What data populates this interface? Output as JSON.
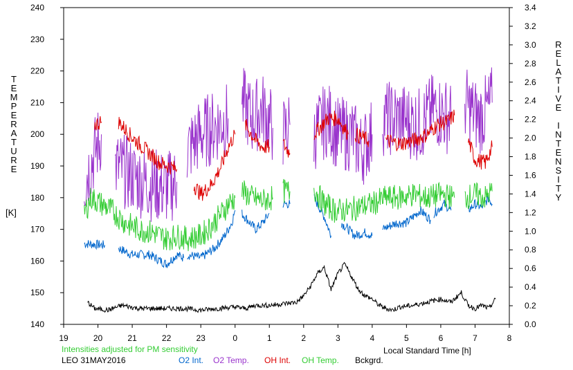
{
  "chart_data": {
    "type": "line",
    "ylabel_left": "TEMPERATURE",
    "ylabel_left_unit": "[K]",
    "ylabel_right": "RELATIVE INTENSITY",
    "xlabel": "Local Standard Time [h]",
    "note": "Intensities adjusted for PM sensitivity",
    "station_date": "LEO 31MAY2016",
    "xlim": [
      19,
      32
    ],
    "ylim_left": [
      140,
      240
    ],
    "ylim_right": [
      0,
      3.4
    ],
    "x_tick_labels": [
      "19",
      "20",
      "21",
      "22",
      "23",
      "0",
      "1",
      "2",
      "3",
      "4",
      "5",
      "6",
      "7",
      "8"
    ],
    "y_left_tick_labels": [
      "140",
      "150",
      "160",
      "170",
      "180",
      "190",
      "200",
      "210",
      "220",
      "230",
      "240"
    ],
    "y_right_tick_labels": [
      "0.0",
      "0.2",
      "0.4",
      "0.6",
      "0.8",
      "1.0",
      "1.2",
      "1.4",
      "1.6",
      "1.8",
      "2.0",
      "2.2",
      "2.4",
      "2.6",
      "2.8",
      "3.0",
      "3.2",
      "3.4"
    ],
    "series": [
      {
        "name": "O2 Int.",
        "color": "#0066cc",
        "axis": "left",
        "segments": [
          [
            [
              19.6,
              165.5
            ],
            [
              20.2,
              165
            ]
          ],
          [
            [
              20.6,
              164
            ],
            [
              21.0,
              162
            ],
            [
              21.5,
              162
            ],
            [
              22.0,
              159
            ],
            [
              22.3,
              162
            ],
            [
              22.5,
              161
            ]
          ],
          [
            [
              22.6,
              162
            ],
            [
              23.0,
              161
            ],
            [
              23.4,
              164
            ],
            [
              23.7,
              168
            ],
            [
              23.9,
              172
            ],
            [
              24.0,
              176
            ]
          ],
          [
            [
              24.2,
              175
            ],
            [
              24.6,
              170
            ],
            [
              24.8,
              172
            ],
            [
              25.0,
              175
            ]
          ],
          [
            [
              25.4,
              178
            ],
            [
              25.6,
              178
            ]
          ],
          [
            [
              26.3,
              180
            ],
            [
              26.6,
              174
            ],
            [
              26.8,
              168
            ]
          ],
          [
            [
              27.1,
              172
            ],
            [
              27.5,
              168
            ],
            [
              27.8,
              169
            ],
            [
              28.0,
              168
            ]
          ],
          [
            [
              28.3,
              170
            ],
            [
              28.7,
              172
            ],
            [
              29.0,
              172
            ],
            [
              29.4,
              176
            ],
            [
              29.7,
              173
            ]
          ],
          [
            [
              29.8,
              175
            ],
            [
              30.1,
              178
            ],
            [
              30.3,
              176
            ]
          ],
          [
            [
              30.8,
              176
            ],
            [
              31.0,
              178
            ],
            [
              31.2,
              177
            ],
            [
              31.4,
              180
            ],
            [
              31.5,
              178
            ]
          ]
        ]
      },
      {
        "name": "O2 Temp.",
        "color": "#9933cc",
        "axis": "left",
        "segments": [
          [
            [
              19.6,
              185
            ],
            [
              20.1,
              200
            ]
          ],
          [
            [
              20.5,
              190
            ],
            [
              21.3,
              185
            ],
            [
              22.0,
              183
            ],
            [
              22.3,
              185
            ]
          ],
          [
            [
              22.6,
              195
            ],
            [
              23.0,
              200
            ],
            [
              23.5,
              203
            ],
            [
              23.8,
              205
            ]
          ],
          [
            [
              24.2,
              210
            ],
            [
              24.5,
              205
            ],
            [
              24.8,
              208
            ],
            [
              25.1,
              202
            ]
          ],
          [
            [
              25.4,
              200
            ],
            [
              25.6,
              203
            ]
          ],
          [
            [
              26.3,
              200
            ],
            [
              26.7,
              205
            ],
            [
              27.0,
              200
            ],
            [
              27.4,
              200
            ],
            [
              27.7,
              195
            ],
            [
              28.0,
              200
            ]
          ],
          [
            [
              28.3,
              205
            ],
            [
              28.8,
              205
            ],
            [
              29.4,
              203
            ],
            [
              29.8,
              208
            ],
            [
              30.3,
              205
            ]
          ],
          [
            [
              30.7,
              210
            ],
            [
              31.1,
              205
            ],
            [
              31.4,
              208
            ],
            [
              31.5,
              210
            ]
          ]
        ]
      },
      {
        "name": "OH Int.",
        "color": "#dd0000",
        "axis": "left",
        "segments": [
          [
            [
              19.9,
              203
            ],
            [
              20.1,
              204
            ]
          ],
          [
            [
              20.6,
              204
            ],
            [
              21.0,
              199
            ],
            [
              21.4,
              195
            ],
            [
              21.8,
              191
            ],
            [
              22.3,
              189
            ]
          ],
          [
            [
              22.8,
              184
            ],
            [
              23.0,
              181
            ],
            [
              23.3,
              184
            ],
            [
              23.6,
              190
            ],
            [
              23.8,
              196
            ],
            [
              24.0,
              200
            ]
          ],
          [
            [
              24.3,
              203
            ],
            [
              24.6,
              198
            ],
            [
              24.8,
              196
            ],
            [
              25.0,
              196
            ]
          ],
          [
            [
              25.4,
              197
            ],
            [
              25.6,
              194
            ]
          ],
          [
            [
              26.3,
              200
            ],
            [
              26.7,
              205
            ],
            [
              27.0,
              205
            ],
            [
              27.3,
              200
            ]
          ],
          [
            [
              27.5,
              200
            ],
            [
              27.9,
              198
            ]
          ],
          [
            [
              28.4,
              198
            ],
            [
              28.8,
              197
            ],
            [
              29.2,
              198
            ],
            [
              29.6,
              200
            ],
            [
              29.9,
              203
            ],
            [
              30.2,
              204
            ],
            [
              30.4,
              206
            ]
          ],
          [
            [
              30.8,
              198
            ],
            [
              31.0,
              192
            ],
            [
              31.3,
              191
            ],
            [
              31.5,
              196
            ]
          ]
        ]
      },
      {
        "name": "OH Temp.",
        "color": "#33cc33",
        "axis": "left",
        "segments": [
          [
            [
              19.6,
              175
            ],
            [
              19.8,
              180
            ],
            [
              20.1,
              178
            ],
            [
              20.4,
              176
            ],
            [
              20.8,
              172
            ],
            [
              21.2,
              170
            ],
            [
              21.6,
              169
            ],
            [
              22.0,
              167
            ],
            [
              22.3,
              168
            ],
            [
              22.6,
              167
            ],
            [
              23.0,
              168
            ],
            [
              23.3,
              171
            ],
            [
              23.6,
              175
            ],
            [
              23.8,
              178
            ],
            [
              24.0,
              180
            ]
          ],
          [
            [
              24.2,
              182
            ],
            [
              24.5,
              180
            ],
            [
              24.8,
              179
            ],
            [
              25.1,
              180
            ]
          ],
          [
            [
              25.4,
              182
            ],
            [
              25.6,
              182
            ]
          ],
          [
            [
              26.3,
              183
            ],
            [
              26.6,
              178
            ],
            [
              26.9,
              176
            ],
            [
              27.3,
              176
            ],
            [
              27.6,
              177
            ],
            [
              28.0,
              178
            ],
            [
              28.4,
              180
            ],
            [
              28.8,
              180
            ],
            [
              29.2,
              181
            ],
            [
              29.6,
              180
            ],
            [
              30.0,
              181
            ],
            [
              30.4,
              180
            ]
          ],
          [
            [
              30.7,
              180
            ],
            [
              31.0,
              181
            ],
            [
              31.3,
              180
            ],
            [
              31.5,
              182
            ]
          ]
        ]
      },
      {
        "name": "Bckgrd.",
        "color": "#000000",
        "axis": "left",
        "segments": [
          [
            [
              19.7,
              147
            ],
            [
              19.9,
              145
            ],
            [
              20.3,
              144.5
            ],
            [
              20.7,
              146
            ],
            [
              21.2,
              145
            ],
            [
              21.6,
              145
            ],
            [
              22.0,
              145
            ],
            [
              22.5,
              145
            ],
            [
              23.0,
              144.5
            ],
            [
              23.5,
              145
            ],
            [
              24.0,
              145.5
            ],
            [
              24.3,
              145
            ],
            [
              24.6,
              146
            ],
            [
              25.0,
              146
            ],
            [
              25.4,
              146.5
            ],
            [
              25.8,
              147
            ],
            [
              26.0,
              149
            ],
            [
              26.2,
              152
            ],
            [
              26.4,
              156
            ],
            [
              26.6,
              158
            ],
            [
              26.8,
              151
            ],
            [
              27.0,
              156
            ],
            [
              27.2,
              159
            ],
            [
              27.4,
              155
            ],
            [
              27.6,
              151
            ],
            [
              27.8,
              149
            ],
            [
              28.0,
              148
            ],
            [
              28.2,
              146
            ],
            [
              28.4,
              145
            ],
            [
              28.6,
              144.5
            ],
            [
              28.8,
              145.5
            ],
            [
              29.2,
              146
            ],
            [
              29.6,
              147
            ],
            [
              30.0,
              148
            ],
            [
              30.3,
              147
            ],
            [
              30.6,
              150
            ],
            [
              30.8,
              146
            ],
            [
              31.0,
              145
            ],
            [
              31.2,
              146
            ],
            [
              31.4,
              145
            ],
            [
              31.6,
              148
            ]
          ]
        ]
      }
    ]
  }
}
